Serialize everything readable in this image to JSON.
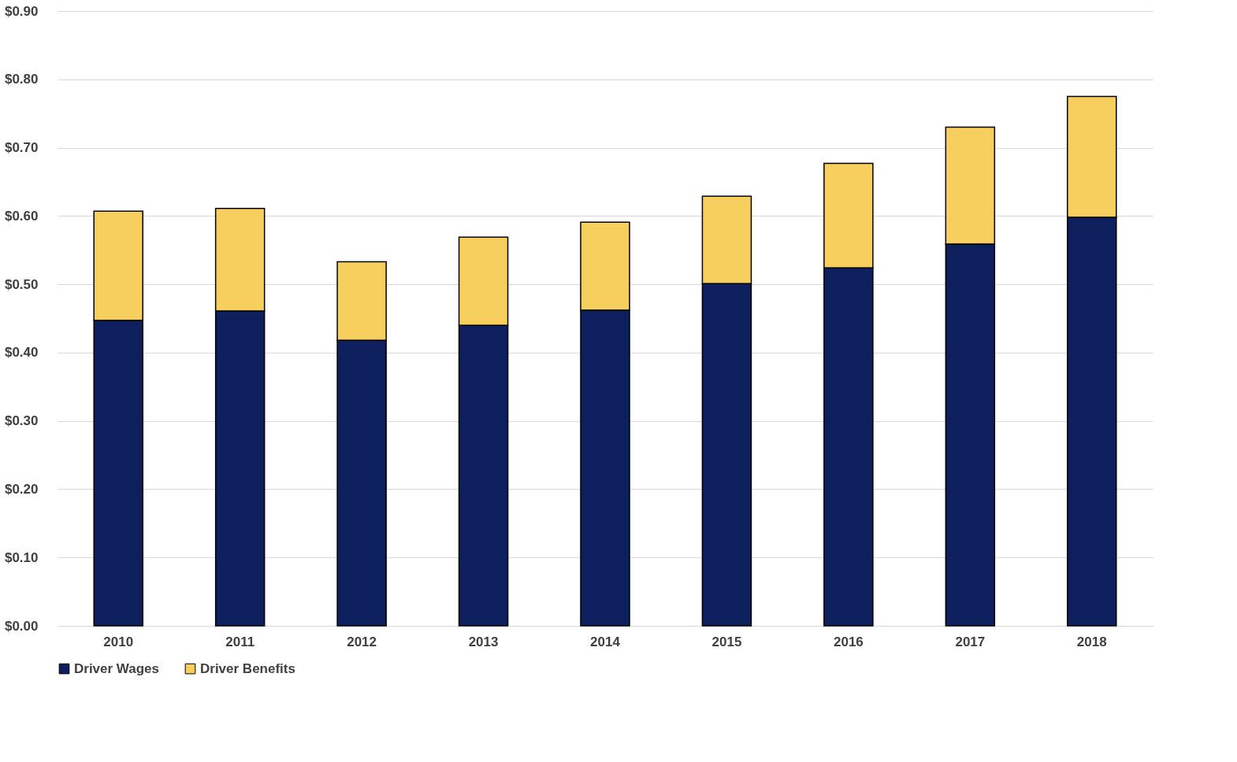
{
  "chart_data": {
    "type": "bar",
    "stacked": true,
    "categories": [
      "2010",
      "2011",
      "2012",
      "2013",
      "2014",
      "2015",
      "2016",
      "2017",
      "2018"
    ],
    "series": [
      {
        "name": "Driver Wages",
        "color": "#0d1f5c",
        "values": [
          0.447,
          0.461,
          0.418,
          0.44,
          0.462,
          0.501,
          0.524,
          0.559,
          0.598
        ]
      },
      {
        "name": "Driver Benefits",
        "color": "#f7cf5e",
        "values": [
          0.16,
          0.15,
          0.115,
          0.129,
          0.129,
          0.128,
          0.153,
          0.171,
          0.177
        ]
      }
    ],
    "ylim": [
      0,
      0.9
    ],
    "yticks": [
      {
        "value": 0,
        "label": "$0.00"
      },
      {
        "value": 0.1,
        "label": "$0.10"
      },
      {
        "value": 0.2,
        "label": "$0.20"
      },
      {
        "value": 0.3,
        "label": "$0.30"
      },
      {
        "value": 0.4,
        "label": "$0.40"
      },
      {
        "value": 0.5,
        "label": "$0.50"
      },
      {
        "value": 0.6,
        "label": "$0.60"
      },
      {
        "value": 0.7,
        "label": "$0.70"
      },
      {
        "value": 0.8,
        "label": "$0.80"
      },
      {
        "value": 0.9,
        "label": "$0.90"
      }
    ],
    "grid": "y",
    "legend": "bottom"
  }
}
